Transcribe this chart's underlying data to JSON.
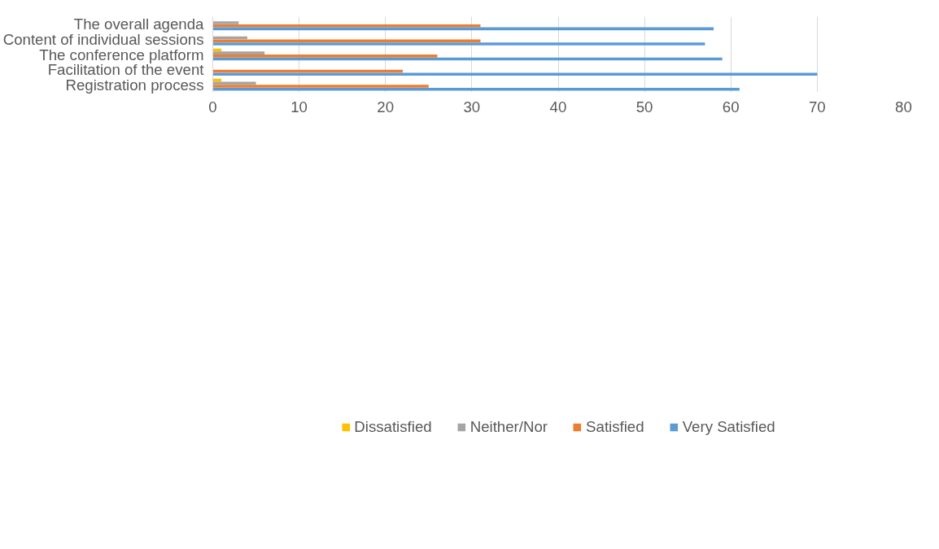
{
  "chart_data": {
    "type": "bar",
    "orientation": "horizontal",
    "categories": [
      "The overall agenda",
      "Content of individual sessions",
      "The conference platform",
      "Facilitation of the event",
      "Registration process"
    ],
    "series": [
      {
        "name": "Dissatisfied",
        "color": "#ffc000",
        "values": [
          null,
          null,
          1,
          null,
          1
        ]
      },
      {
        "name": "Neither/Nor",
        "color": "#a5a5a5",
        "values": [
          3,
          4,
          6,
          null,
          5
        ]
      },
      {
        "name": "Satisfied",
        "color": "#ed7d31",
        "values": [
          31,
          31,
          26,
          22,
          25
        ]
      },
      {
        "name": "Very Satisfied",
        "color": "#5b9bd5",
        "values": [
          58,
          57,
          59,
          70,
          61
        ]
      }
    ],
    "xlim": [
      0,
      80
    ],
    "xticks": [
      0,
      10,
      20,
      30,
      40,
      50,
      60,
      70,
      80
    ],
    "grid": "x",
    "legend": "bottom"
  }
}
